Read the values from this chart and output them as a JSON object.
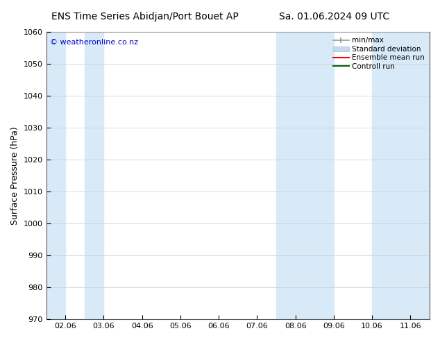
{
  "title_left": "ENS Time Series Abidjan/Port Bouet AP",
  "title_right": "Sa. 01.06.2024 09 UTC",
  "ylabel": "Surface Pressure (hPa)",
  "ylim": [
    970,
    1060
  ],
  "yticks": [
    970,
    980,
    990,
    1000,
    1010,
    1020,
    1030,
    1040,
    1050,
    1060
  ],
  "xtick_labels": [
    "02.06",
    "03.06",
    "04.06",
    "05.06",
    "06.06",
    "07.06",
    "08.06",
    "09.06",
    "10.06",
    "11.06"
  ],
  "xtick_positions": [
    0,
    1,
    2,
    3,
    4,
    5,
    6,
    7,
    8,
    9
  ],
  "xlim": [
    -0.5,
    9.5
  ],
  "shaded_bands": [
    {
      "xmin": -0.5,
      "xmax": 0.0,
      "color": "#d8eaf8"
    },
    {
      "xmin": 0.5,
      "xmax": 1.0,
      "color": "#d8eaf8"
    },
    {
      "xmin": 5.5,
      "xmax": 6.5,
      "color": "#d8eaf8"
    },
    {
      "xmin": 7.5,
      "xmax": 8.0,
      "color": "#d8eaf8"
    },
    {
      "xmin": 8.5,
      "xmax": 9.5,
      "color": "#d8eaf8"
    }
  ],
  "watermark": "© weatheronline.co.nz",
  "watermark_color": "#0000cc",
  "legend_labels": [
    "min/max",
    "Standard deviation",
    "Ensemble mean run",
    "Controll run"
  ],
  "legend_minmax_color": "#999999",
  "legend_std_color": "#c8daea",
  "legend_ens_color": "#ff0000",
  "legend_ctrl_color": "#006400",
  "background_color": "#ffffff",
  "plot_bg_color": "#ffffff",
  "title_fontsize": 10,
  "axis_label_fontsize": 9,
  "tick_fontsize": 8,
  "grid_color": "#cccccc",
  "spine_color": "#555555",
  "light_blue": "#d8eaf8"
}
